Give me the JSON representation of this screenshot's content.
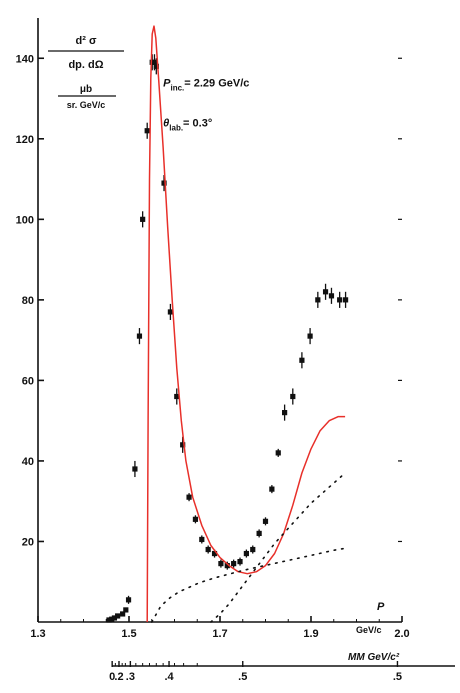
{
  "chart_data": {
    "type": "scatter",
    "title": "",
    "ylabel": {
      "numerator": "d² σ",
      "denominator": "dp. dΩ",
      "unit_numerator": "μb",
      "unit_denominator": "sr. GeV/c"
    },
    "xlabel": "GeV/c",
    "xlabel_secondary": "MM GeV/c²",
    "xlim": [
      1.3,
      2.1
    ],
    "ylim": [
      0,
      150
    ],
    "x_ticks": [
      "1.3",
      "1.5",
      "1.7",
      "1.9",
      "2.0"
    ],
    "y_ticks": [
      "20",
      "40",
      "60",
      "80",
      "100",
      "120",
      "140"
    ],
    "y_tick_values": [
      20,
      40,
      60,
      80,
      100,
      120,
      140
    ],
    "secondary_ticks": [
      "0",
      ".2",
      ".3",
      ".4",
      ".5",
      ".5"
    ],
    "secondary_tick_positions": [
      1.463,
      1.478,
      1.503,
      1.588,
      1.75,
      2.09
    ],
    "annotations": [
      {
        "text": "P",
        "sub": "inc.",
        "rest": "= 2.29 GeV/c",
        "x": 1.575,
        "y": 133
      },
      {
        "text": "θ",
        "sub": "lab.",
        "rest": "= 0.3°",
        "x": 1.575,
        "y": 123
      }
    ],
    "corner_label": "P",
    "corner_label_pos": {
      "x": 2.045,
      "y": 3
    },
    "series": [
      {
        "kind": "points",
        "x": [
          1.456,
          1.462,
          1.468,
          1.475,
          1.486,
          1.493,
          1.499,
          1.513,
          1.523,
          1.53,
          1.54,
          1.551,
          1.556,
          1.56,
          1.577,
          1.591,
          1.605,
          1.618,
          1.632,
          1.646,
          1.66,
          1.674,
          1.688,
          1.702,
          1.716,
          1.73,
          1.744,
          1.758,
          1.772,
          1.786,
          1.8,
          1.814,
          1.828,
          1.842,
          1.86,
          1.88,
          1.898,
          1.915,
          1.932,
          1.945,
          1.963,
          1.976
        ],
        "y": [
          0.5,
          0.7,
          1,
          1.5,
          2,
          3,
          5.5,
          38,
          71,
          100,
          122,
          139,
          139,
          138,
          109,
          77,
          56,
          44,
          31,
          25.5,
          20.5,
          18,
          17,
          14.5,
          14,
          14.5,
          15,
          17,
          18,
          22,
          25,
          33,
          42,
          52,
          56,
          65,
          71,
          80,
          82,
          81,
          80,
          80
        ],
        "err": [
          0,
          0,
          0,
          0,
          0,
          0,
          1,
          2,
          2,
          2,
          2,
          2,
          2,
          2,
          2,
          2,
          2,
          2,
          1,
          1,
          1,
          1,
          1,
          1,
          1,
          1,
          1,
          1,
          1,
          1,
          1,
          1,
          1,
          2,
          2,
          2,
          2,
          2,
          2,
          2,
          2,
          2
        ]
      },
      {
        "kind": "curve",
        "color": "#e8302a",
        "x": [
          1.54,
          1.542,
          1.545,
          1.548,
          1.551,
          1.555,
          1.559,
          1.565,
          1.575,
          1.585,
          1.595,
          1.605,
          1.615,
          1.625,
          1.64,
          1.66,
          1.68,
          1.7,
          1.72,
          1.74,
          1.76,
          1.78,
          1.8,
          1.82,
          1.84,
          1.86,
          1.88,
          1.9,
          1.92,
          1.94,
          1.96,
          1.975
        ],
        "y": [
          0,
          50,
          110,
          135,
          146,
          148,
          145,
          135,
          118,
          98,
          80,
          63,
          50,
          40,
          31,
          24,
          19,
          16,
          14,
          12.5,
          12,
          12.5,
          14,
          17,
          22,
          29,
          37,
          43,
          47.5,
          50,
          51,
          51
        ]
      },
      {
        "kind": "dotted",
        "color": "#111111",
        "x": [
          1.55,
          1.57,
          1.59,
          1.61,
          1.63,
          1.65,
          1.67,
          1.69,
          1.71,
          1.73,
          1.75,
          1.77,
          1.79,
          1.81,
          1.83,
          1.85,
          1.87,
          1.89,
          1.91,
          1.93,
          1.95,
          1.975
        ],
        "y": [
          0,
          4,
          6,
          7.5,
          8.5,
          9.5,
          10.3,
          11,
          11.6,
          12.2,
          12.8,
          13.3,
          13.8,
          14.3,
          14.8,
          15.3,
          15.8,
          16.3,
          16.8,
          17.3,
          17.8,
          18.3
        ]
      },
      {
        "kind": "dotted",
        "color": "#111111",
        "x": [
          1.68,
          1.7,
          1.72,
          1.74,
          1.76,
          1.78,
          1.8,
          1.82,
          1.84,
          1.86,
          1.88,
          1.9,
          1.92,
          1.94,
          1.96,
          1.975
        ],
        "y": [
          0,
          2,
          4.5,
          7.5,
          10.5,
          13.5,
          16.5,
          19.5,
          22,
          24.5,
          27,
          29.5,
          31.5,
          33.5,
          35.5,
          37
        ]
      }
    ]
  }
}
